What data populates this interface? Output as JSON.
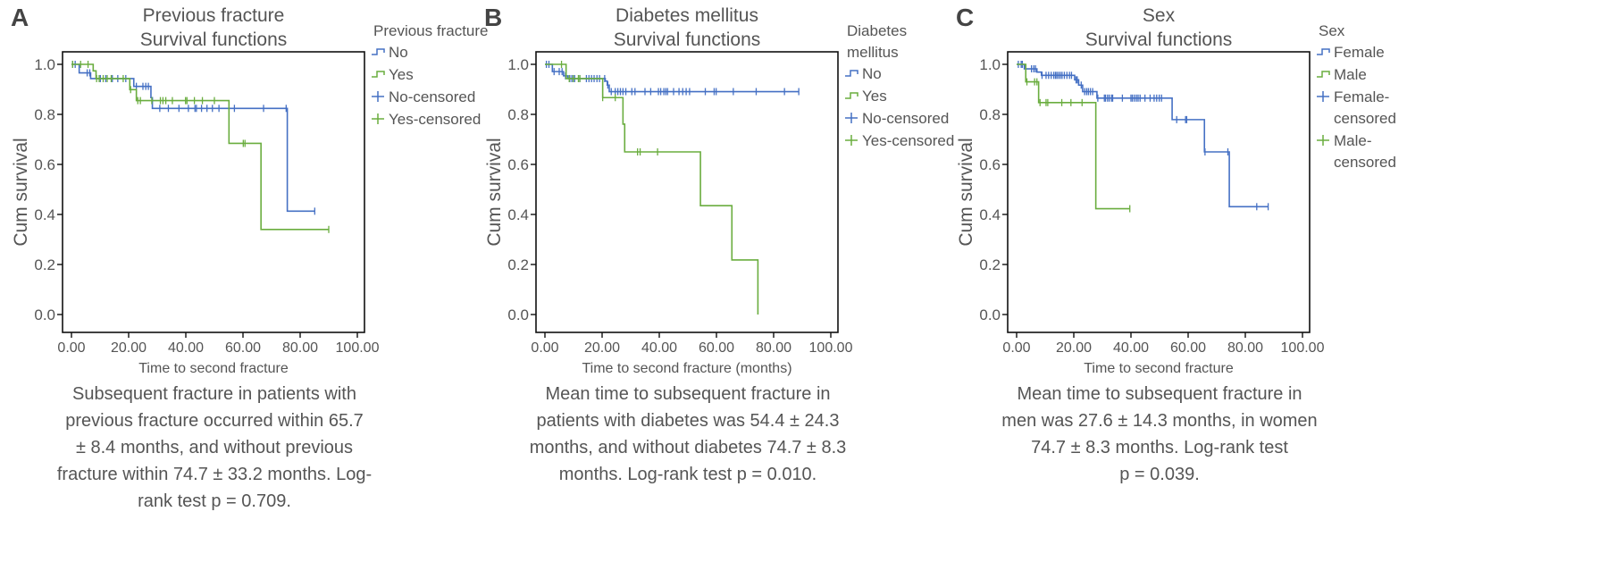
{
  "colors": {
    "blue": "#4570c4",
    "green": "#6aad3f",
    "axis": "#111111",
    "text": "#555555"
  },
  "chart_data": [
    {
      "type": "line",
      "panel_label": "A",
      "title": [
        "Previous fracture",
        "Survival functions"
      ],
      "xlabel": "Time to second fracture",
      "ylabel": "Cum survival",
      "xlim": [
        0,
        100
      ],
      "ylim": [
        0,
        1
      ],
      "xticks": [
        "0.00",
        "20.00",
        "40.00",
        "60.00",
        "80.00",
        "100.00"
      ],
      "yticks": [
        "0.0",
        "0.2",
        "0.4",
        "0.6",
        "0.8",
        "1.0"
      ],
      "legend_title": [
        "Previous fracture"
      ],
      "legend": [
        {
          "label": [
            "No"
          ],
          "kind": "line",
          "color": "blue"
        },
        {
          "label": [
            "Yes"
          ],
          "kind": "line",
          "color": "green"
        },
        {
          "label": [
            "No-censored"
          ],
          "kind": "censor",
          "color": "blue"
        },
        {
          "label": [
            "Yes-censored"
          ],
          "kind": "censor",
          "color": "green"
        }
      ],
      "series": [
        {
          "name": "No",
          "color": "blue",
          "events": [
            [
              2.7,
              0.966
            ],
            [
              6.7,
              0.943
            ],
            [
              21.8,
              0.912
            ],
            [
              27.8,
              0.867
            ],
            [
              28.3,
              0.824
            ],
            [
              75.5,
              0.413
            ]
          ],
          "end": 85.1,
          "censored": [
            0.4,
            1.3,
            5.5,
            6.4,
            10.1,
            12,
            14.3,
            16.2,
            19,
            22.7,
            25,
            26,
            26.9,
            30.9,
            33.9,
            37.6,
            40.9,
            43.2,
            43.7,
            45.5,
            47.4,
            49.3,
            51.6,
            57,
            67.2,
            75.1,
            85.1
          ]
        },
        {
          "name": "Yes",
          "color": "green",
          "events": [
            [
              7.6,
              0.974
            ],
            [
              8.6,
              0.943
            ],
            [
              20.4,
              0.899
            ],
            [
              22.7,
              0.855
            ],
            [
              55.1,
              0.684
            ],
            [
              66.3,
              0.34
            ]
          ],
          "end": 90,
          "censored": [
            0.4,
            3.2,
            5.8,
            8.8,
            9.7,
            11.1,
            12.5,
            13.9,
            18.1,
            20.7,
            23.2,
            24.1,
            28.1,
            31.1,
            32,
            33,
            35.3,
            39.9,
            40.4,
            43,
            45.8,
            50,
            60.1,
            60.7,
            90
          ]
        }
      ],
      "caption": [
        "Subsequent fracture in patients with",
        "previous fracture occurred within 65.7",
        "± 8.4 months, and without previous",
        "fracture within 74.7 ± 33.2 months. Log-",
        "rank test p = 0.709."
      ]
    },
    {
      "type": "line",
      "panel_label": "B",
      "title": [
        "Diabetes mellitus",
        "Survival functions"
      ],
      "xlabel": "Time to second fracture (months)",
      "ylabel": "Cum survival",
      "xlim": [
        0,
        100
      ],
      "ylim": [
        0,
        1
      ],
      "xticks": [
        "0.00",
        "20.00",
        "40.00",
        "60.00",
        "80.00",
        "100.00"
      ],
      "yticks": [
        "0.0",
        "0.2",
        "0.4",
        "0.6",
        "0.8",
        "1.0"
      ],
      "legend_title": [
        "Diabetes",
        "mellitus"
      ],
      "legend": [
        {
          "label": [
            "No"
          ],
          "kind": "line",
          "color": "blue"
        },
        {
          "label": [
            "Yes"
          ],
          "kind": "line",
          "color": "green"
        },
        {
          "label": [
            "No-censored"
          ],
          "kind": "censor",
          "color": "blue"
        },
        {
          "label": [
            "Yes-censored"
          ],
          "kind": "censor",
          "color": "green"
        }
      ],
      "series": [
        {
          "name": "No",
          "color": "blue",
          "events": [
            [
              2.6,
              0.971
            ],
            [
              6.5,
              0.954
            ],
            [
              8.0,
              0.943
            ],
            [
              21.1,
              0.933
            ],
            [
              21.8,
              0.917
            ],
            [
              22.5,
              0.891
            ]
          ],
          "end": 88.8,
          "censored": [
            0.5,
            1.4,
            3.2,
            5,
            6,
            7.2,
            8.7,
            9.4,
            10.4,
            12.2,
            14.5,
            15.4,
            16.3,
            17.2,
            18.2,
            19.1,
            20.9,
            22,
            23.2,
            24.6,
            25.5,
            26.4,
            27.3,
            28.3,
            30.4,
            31.5,
            35,
            37,
            39.7,
            40.5,
            41.6,
            42.3,
            42.9,
            45,
            46.9,
            48.2,
            49.4,
            50.6,
            56.1,
            59.2,
            59.9,
            65.9,
            73.9,
            83.8,
            88.8
          ]
        },
        {
          "name": "Yes",
          "color": "green",
          "events": [
            [
              7.4,
              0.943
            ],
            [
              20.2,
              0.867
            ],
            [
              27.3,
              0.761
            ],
            [
              27.9,
              0.65
            ],
            [
              54.4,
              0.435
            ],
            [
              65.4,
              0.218
            ],
            [
              74.5,
              0.0
            ]
          ],
          "end": 74.5,
          "censored": [
            5.8,
            8.5,
            9.9,
            11.7,
            12.2,
            20.2,
            24.6,
            32.4,
            33.3,
            39.4
          ]
        }
      ],
      "caption": [
        "Mean time to subsequent fracture in",
        "patients with diabetes was 54.4 ± 24.3",
        "months, and without diabetes 74.7 ± 8.3",
        "months. Log-rank test p = 0.010."
      ]
    },
    {
      "type": "line",
      "panel_label": "C",
      "title": [
        "Sex",
        "Survival functions"
      ],
      "xlabel": "Time to second fracture",
      "ylabel": "Cum survival",
      "xlim": [
        0,
        100
      ],
      "ylim": [
        0,
        1
      ],
      "xticks": [
        "0.00",
        "20.00",
        "40.00",
        "60.00",
        "80.00",
        "100.00"
      ],
      "yticks": [
        "0.0",
        "0.2",
        "0.4",
        "0.6",
        "0.8",
        "1.0"
      ],
      "legend_title": [
        "Sex"
      ],
      "legend": [
        {
          "label": [
            "Female"
          ],
          "kind": "line",
          "color": "blue"
        },
        {
          "label": [
            "Male"
          ],
          "kind": "line",
          "color": "green"
        },
        {
          "label": [
            "Female-",
            "censored"
          ],
          "kind": "censor",
          "color": "blue"
        },
        {
          "label": [
            "Male-",
            "censored"
          ],
          "kind": "censor",
          "color": "green"
        }
      ],
      "series": [
        {
          "name": "Female",
          "color": "blue",
          "events": [
            [
              2.7,
              0.982
            ],
            [
              7.1,
              0.969
            ],
            [
              8.7,
              0.956
            ],
            [
              20.3,
              0.938
            ],
            [
              21.7,
              0.917
            ],
            [
              23.1,
              0.891
            ],
            [
              28.1,
              0.865
            ],
            [
              54.4,
              0.779
            ],
            [
              65.7,
              0.65
            ],
            [
              74.4,
              0.431
            ]
          ],
          "end": 88,
          "censored": [
            0.6,
            1.6,
            2.0,
            5.2,
            6.0,
            6.6,
            8.9,
            10.3,
            11.2,
            12.1,
            13,
            13.6,
            14.1,
            14.7,
            15.3,
            15.9,
            16.7,
            17.6,
            18.5,
            19.2,
            20.8,
            21.2,
            22.6,
            23.8,
            24.5,
            25.1,
            25.8,
            26.6,
            28.4,
            30.7,
            31.1,
            31.8,
            32.4,
            33.2,
            33.6,
            37,
            40,
            40.5,
            41.2,
            41.9,
            42.5,
            43.2,
            44.9,
            46.7,
            48.1,
            49,
            49.9,
            50.7,
            56,
            59.1,
            59.5,
            65.9,
            73.9,
            84,
            88
          ]
        },
        {
          "name": "Male",
          "color": "green",
          "events": [
            [
              3.2,
              0.93
            ],
            [
              7.7,
              0.847
            ],
            [
              27.7,
              0.423
            ]
          ],
          "end": 39.6,
          "censored": [
            3.6,
            6.3,
            7.1,
            8.2,
            10.3,
            10.9,
            15.8,
            19,
            22.9,
            39.6
          ]
        }
      ],
      "caption": [
        "Mean time to subsequent fracture in",
        "men was 27.6 ± 14.3 months, in women",
        "74.7 ± 8.3 months. Log-rank test",
        "p = 0.039."
      ]
    }
  ]
}
